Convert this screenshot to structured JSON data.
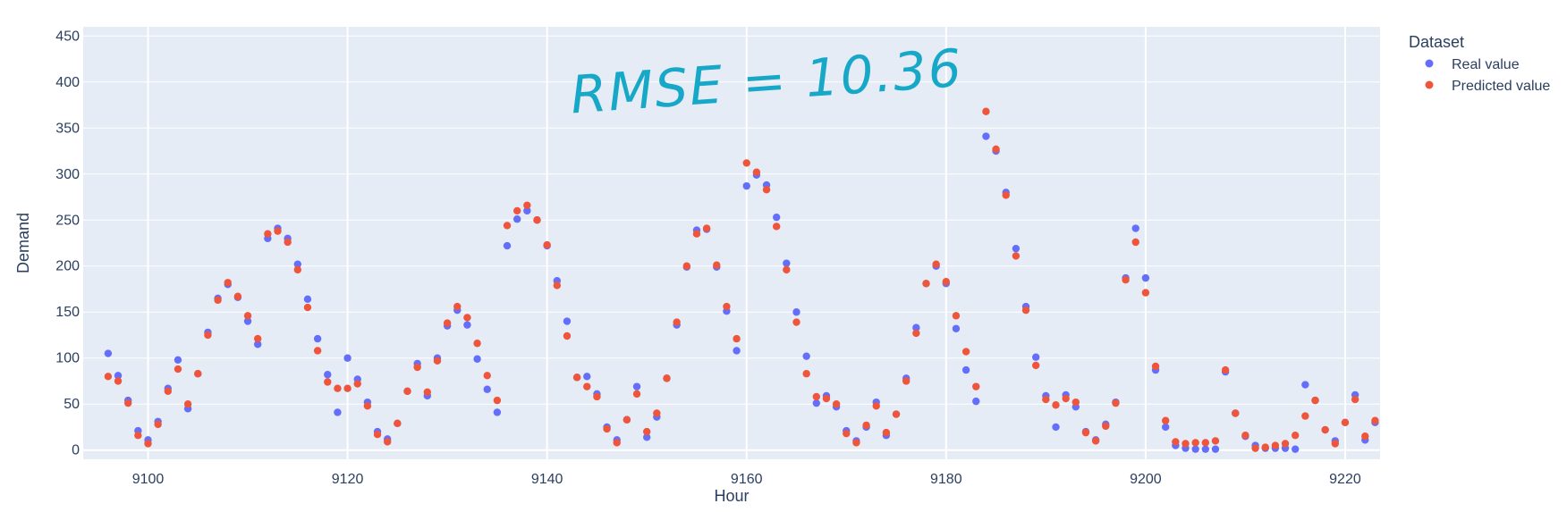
{
  "chart_data": {
    "type": "scatter",
    "xlabel": "Hour",
    "ylabel": "Demand",
    "xlim": [
      9093.5,
      9223.5
    ],
    "ylim": [
      -10,
      460
    ],
    "x_ticks": [
      9100,
      9120,
      9140,
      9160,
      9180,
      9200,
      9220
    ],
    "y_ticks": [
      0,
      50,
      100,
      150,
      200,
      250,
      300,
      350,
      400,
      450
    ],
    "grid": true,
    "background": "#E5ECF6",
    "legend": {
      "title": "Dataset",
      "placement": "top-right outside",
      "entries": [
        "Real value",
        "Predicted value"
      ]
    },
    "annotation": "RMSE = 10.36",
    "annotation_color": "#17A8C8",
    "x_start": 9096,
    "series": [
      {
        "name": "Real value",
        "color": "#636EFA",
        "values": [
          105,
          81,
          54,
          21,
          11,
          31,
          67,
          98,
          45,
          83,
          128,
          165,
          180,
          166,
          140,
          115,
          230,
          241,
          230,
          202,
          164,
          121,
          82,
          41,
          100,
          77,
          52,
          20,
          12,
          29,
          64,
          94,
          59,
          100,
          135,
          152,
          136,
          99,
          66,
          41,
          222,
          251,
          260,
          250,
          222,
          184,
          140,
          79,
          80,
          61,
          25,
          11,
          33,
          69,
          14,
          36,
          78,
          136,
          199,
          239,
          240,
          199,
          151,
          108,
          287,
          299,
          288,
          253,
          203,
          150,
          102,
          51,
          59,
          47,
          21,
          10,
          25,
          52,
          16,
          39,
          78,
          133,
          181,
          200,
          181,
          132,
          87,
          53,
          341,
          325,
          280,
          219,
          156,
          101,
          59,
          25,
          60,
          47,
          20,
          11,
          28,
          52,
          187,
          241,
          187,
          87,
          25,
          5,
          2,
          1,
          1,
          1,
          85,
          40,
          15,
          5,
          2,
          2,
          2,
          1,
          71,
          54,
          22,
          10,
          30,
          60,
          11,
          30
        ],
        "note_x_is_hour": true
      },
      {
        "name": "Predicted value",
        "color": "#EF553B",
        "values": [
          80,
          75,
          51,
          16,
          7,
          28,
          64,
          88,
          50,
          83,
          125,
          163,
          182,
          167,
          146,
          121,
          235,
          238,
          226,
          196,
          155,
          108,
          74,
          67,
          67,
          72,
          48,
          17,
          9,
          29,
          64,
          90,
          63,
          97,
          138,
          156,
          144,
          116,
          81,
          54,
          244,
          260,
          266,
          250,
          223,
          179,
          124,
          79,
          69,
          58,
          23,
          8,
          33,
          61,
          20,
          40,
          78,
          139,
          200,
          235,
          241,
          201,
          156,
          121,
          312,
          302,
          283,
          243,
          196,
          139,
          83,
          58,
          56,
          50,
          18,
          8,
          27,
          48,
          19,
          39,
          75,
          127,
          181,
          202,
          183,
          146,
          107,
          69,
          368,
          327,
          277,
          211,
          152,
          92,
          55,
          49,
          56,
          52,
          19,
          10,
          26,
          51,
          185,
          226,
          171,
          91,
          32,
          9,
          7,
          8,
          8,
          10,
          87,
          40,
          16,
          2,
          3,
          5,
          7,
          16,
          37,
          54,
          22,
          7,
          30,
          55,
          15,
          32
        ]
      }
    ]
  }
}
